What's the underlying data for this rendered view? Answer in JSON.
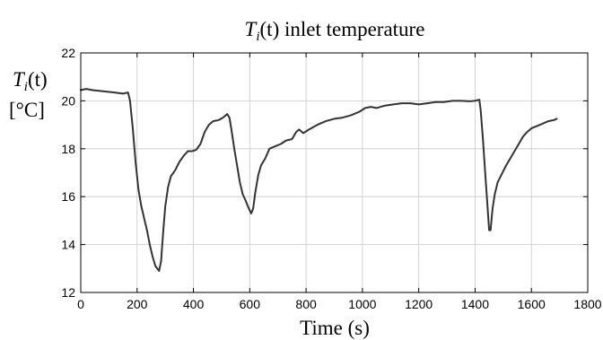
{
  "chart_data": {
    "type": "line",
    "title": {
      "sym": "T",
      "sub": "i",
      "rest": "(t) inlet temperature"
    },
    "ylabel": {
      "sym": "T",
      "sub": "i",
      "rest": "(t)",
      "unit": "[°C]"
    },
    "xlabel": "Time (s)",
    "xlim": [
      0,
      1800
    ],
    "ylim": [
      12,
      22
    ],
    "xticks": [
      0,
      200,
      400,
      600,
      800,
      1000,
      1200,
      1400,
      1600,
      1800
    ],
    "yticks": [
      12,
      14,
      16,
      18,
      20,
      22
    ],
    "grid": true,
    "series": [
      {
        "color": "#333333",
        "points": [
          [
            0,
            20.45
          ],
          [
            20,
            20.5
          ],
          [
            40,
            20.45
          ],
          [
            80,
            20.4
          ],
          [
            120,
            20.35
          ],
          [
            150,
            20.3
          ],
          [
            168,
            20.35
          ],
          [
            175,
            20.0
          ],
          [
            185,
            18.8
          ],
          [
            195,
            17.4
          ],
          [
            205,
            16.3
          ],
          [
            215,
            15.6
          ],
          [
            225,
            15.1
          ],
          [
            235,
            14.6
          ],
          [
            245,
            14.0
          ],
          [
            255,
            13.5
          ],
          [
            265,
            13.1
          ],
          [
            278,
            12.9
          ],
          [
            285,
            13.3
          ],
          [
            293,
            14.6
          ],
          [
            300,
            15.6
          ],
          [
            310,
            16.4
          ],
          [
            320,
            16.85
          ],
          [
            335,
            17.1
          ],
          [
            350,
            17.45
          ],
          [
            365,
            17.7
          ],
          [
            380,
            17.9
          ],
          [
            395,
            17.9
          ],
          [
            410,
            17.95
          ],
          [
            425,
            18.2
          ],
          [
            440,
            18.7
          ],
          [
            455,
            19.0
          ],
          [
            470,
            19.15
          ],
          [
            490,
            19.2
          ],
          [
            505,
            19.3
          ],
          [
            520,
            19.45
          ],
          [
            528,
            19.3
          ],
          [
            535,
            18.8
          ],
          [
            545,
            18.0
          ],
          [
            555,
            17.3
          ],
          [
            565,
            16.6
          ],
          [
            575,
            16.1
          ],
          [
            585,
            15.85
          ],
          [
            595,
            15.55
          ],
          [
            605,
            15.3
          ],
          [
            612,
            15.5
          ],
          [
            620,
            16.2
          ],
          [
            630,
            16.9
          ],
          [
            640,
            17.3
          ],
          [
            655,
            17.6
          ],
          [
            670,
            18.0
          ],
          [
            690,
            18.1
          ],
          [
            710,
            18.2
          ],
          [
            730,
            18.35
          ],
          [
            750,
            18.4
          ],
          [
            765,
            18.7
          ],
          [
            775,
            18.8
          ],
          [
            790,
            18.65
          ],
          [
            810,
            18.8
          ],
          [
            840,
            19.0
          ],
          [
            870,
            19.15
          ],
          [
            900,
            19.25
          ],
          [
            930,
            19.3
          ],
          [
            960,
            19.4
          ],
          [
            990,
            19.55
          ],
          [
            1010,
            19.7
          ],
          [
            1030,
            19.75
          ],
          [
            1050,
            19.7
          ],
          [
            1080,
            19.8
          ],
          [
            1110,
            19.85
          ],
          [
            1140,
            19.9
          ],
          [
            1170,
            19.9
          ],
          [
            1200,
            19.85
          ],
          [
            1230,
            19.9
          ],
          [
            1260,
            19.95
          ],
          [
            1290,
            19.95
          ],
          [
            1320,
            20.0
          ],
          [
            1350,
            20.0
          ],
          [
            1380,
            19.98
          ],
          [
            1400,
            20.0
          ],
          [
            1415,
            20.05
          ],
          [
            1420,
            19.6
          ],
          [
            1428,
            18.4
          ],
          [
            1436,
            17.0
          ],
          [
            1444,
            15.6
          ],
          [
            1450,
            14.6
          ],
          [
            1455,
            14.6
          ],
          [
            1462,
            15.5
          ],
          [
            1470,
            16.1
          ],
          [
            1480,
            16.6
          ],
          [
            1495,
            16.95
          ],
          [
            1510,
            17.3
          ],
          [
            1525,
            17.6
          ],
          [
            1540,
            17.9
          ],
          [
            1555,
            18.2
          ],
          [
            1570,
            18.5
          ],
          [
            1585,
            18.7
          ],
          [
            1600,
            18.85
          ],
          [
            1620,
            18.95
          ],
          [
            1640,
            19.05
          ],
          [
            1660,
            19.15
          ],
          [
            1680,
            19.2
          ],
          [
            1690,
            19.25
          ]
        ]
      }
    ]
  }
}
